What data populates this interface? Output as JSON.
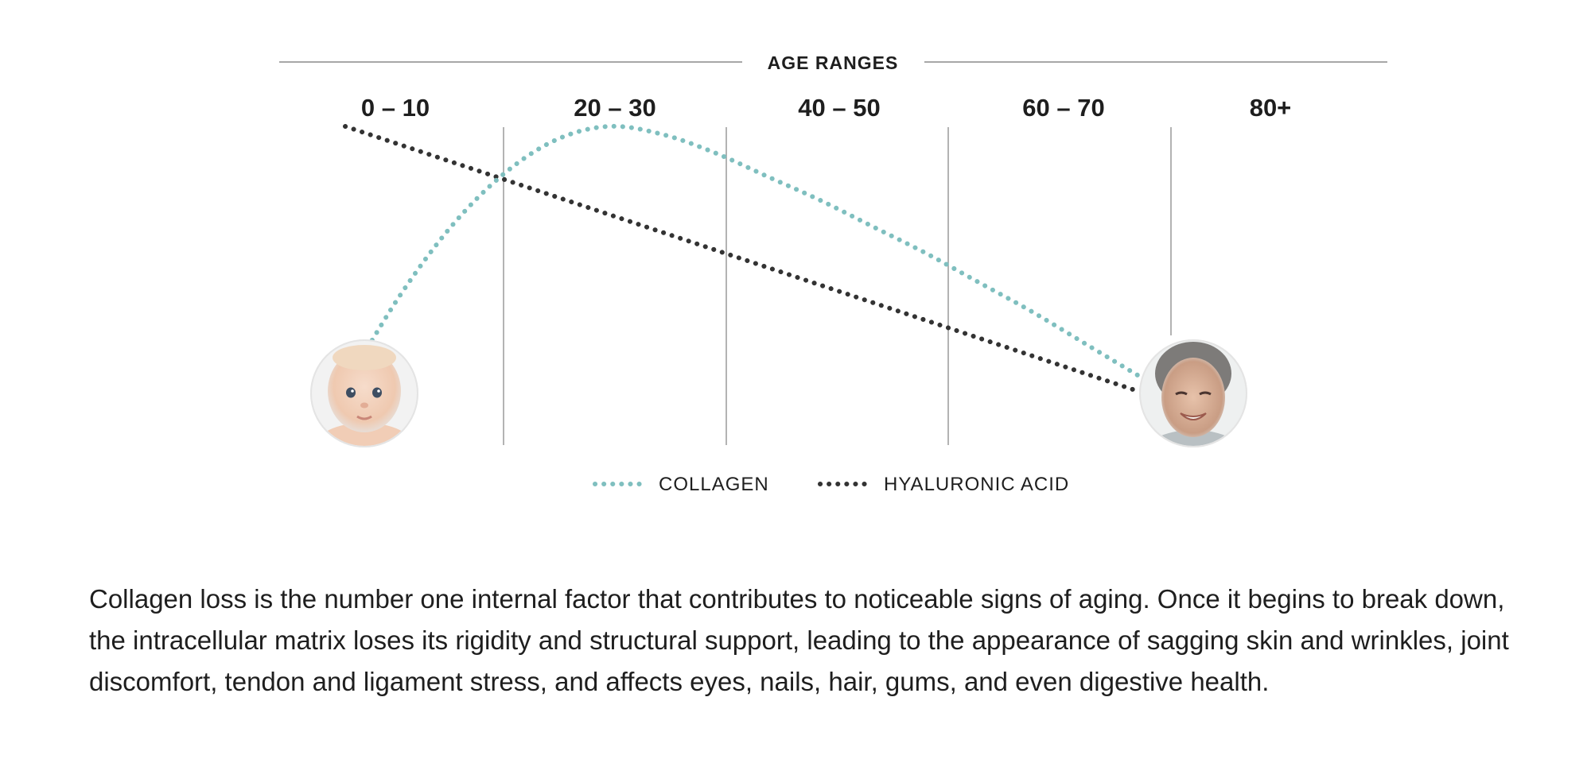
{
  "chart_data": {
    "type": "line",
    "title": "AGE RANGES",
    "categories": [
      "0 – 10",
      "20 – 30",
      "40 – 50",
      "60 – 70",
      "80+"
    ],
    "x": [
      5,
      25,
      45,
      65,
      85
    ],
    "series": [
      {
        "name": "COLLAGEN",
        "style": "dotted",
        "color": "#7fbfbf",
        "x": [
          0,
          5,
          10,
          15,
          20,
          25,
          30,
          35,
          40,
          45,
          50,
          55,
          60,
          65,
          70,
          75
        ],
        "values": [
          2,
          35,
          62,
          82,
          95,
          100,
          97,
          90,
          81,
          72,
          62,
          52,
          41,
          30,
          18,
          6
        ]
      },
      {
        "name": "HYALURONIC ACID",
        "style": "dotted",
        "color": "#333333",
        "x": [
          0,
          75
        ],
        "values": [
          100,
          0
        ]
      }
    ],
    "ylim": [
      0,
      100
    ],
    "grid": "vertical dividers between age ranges",
    "legend": "bottom-center",
    "annotations": [
      "baby-photo",
      "elderly-woman-photo"
    ]
  },
  "description": {
    "text": "Collagen loss is the number one internal factor that contributes to noticeable signs of aging. Once it begins to break down, the intracellular matrix loses its rigidity and structural support, leading to the appearance of sagging skin and wrinkles, joint discomfort, tendon and ligament stress, and affects eyes, nails, hair, gums, and even digestive health."
  }
}
